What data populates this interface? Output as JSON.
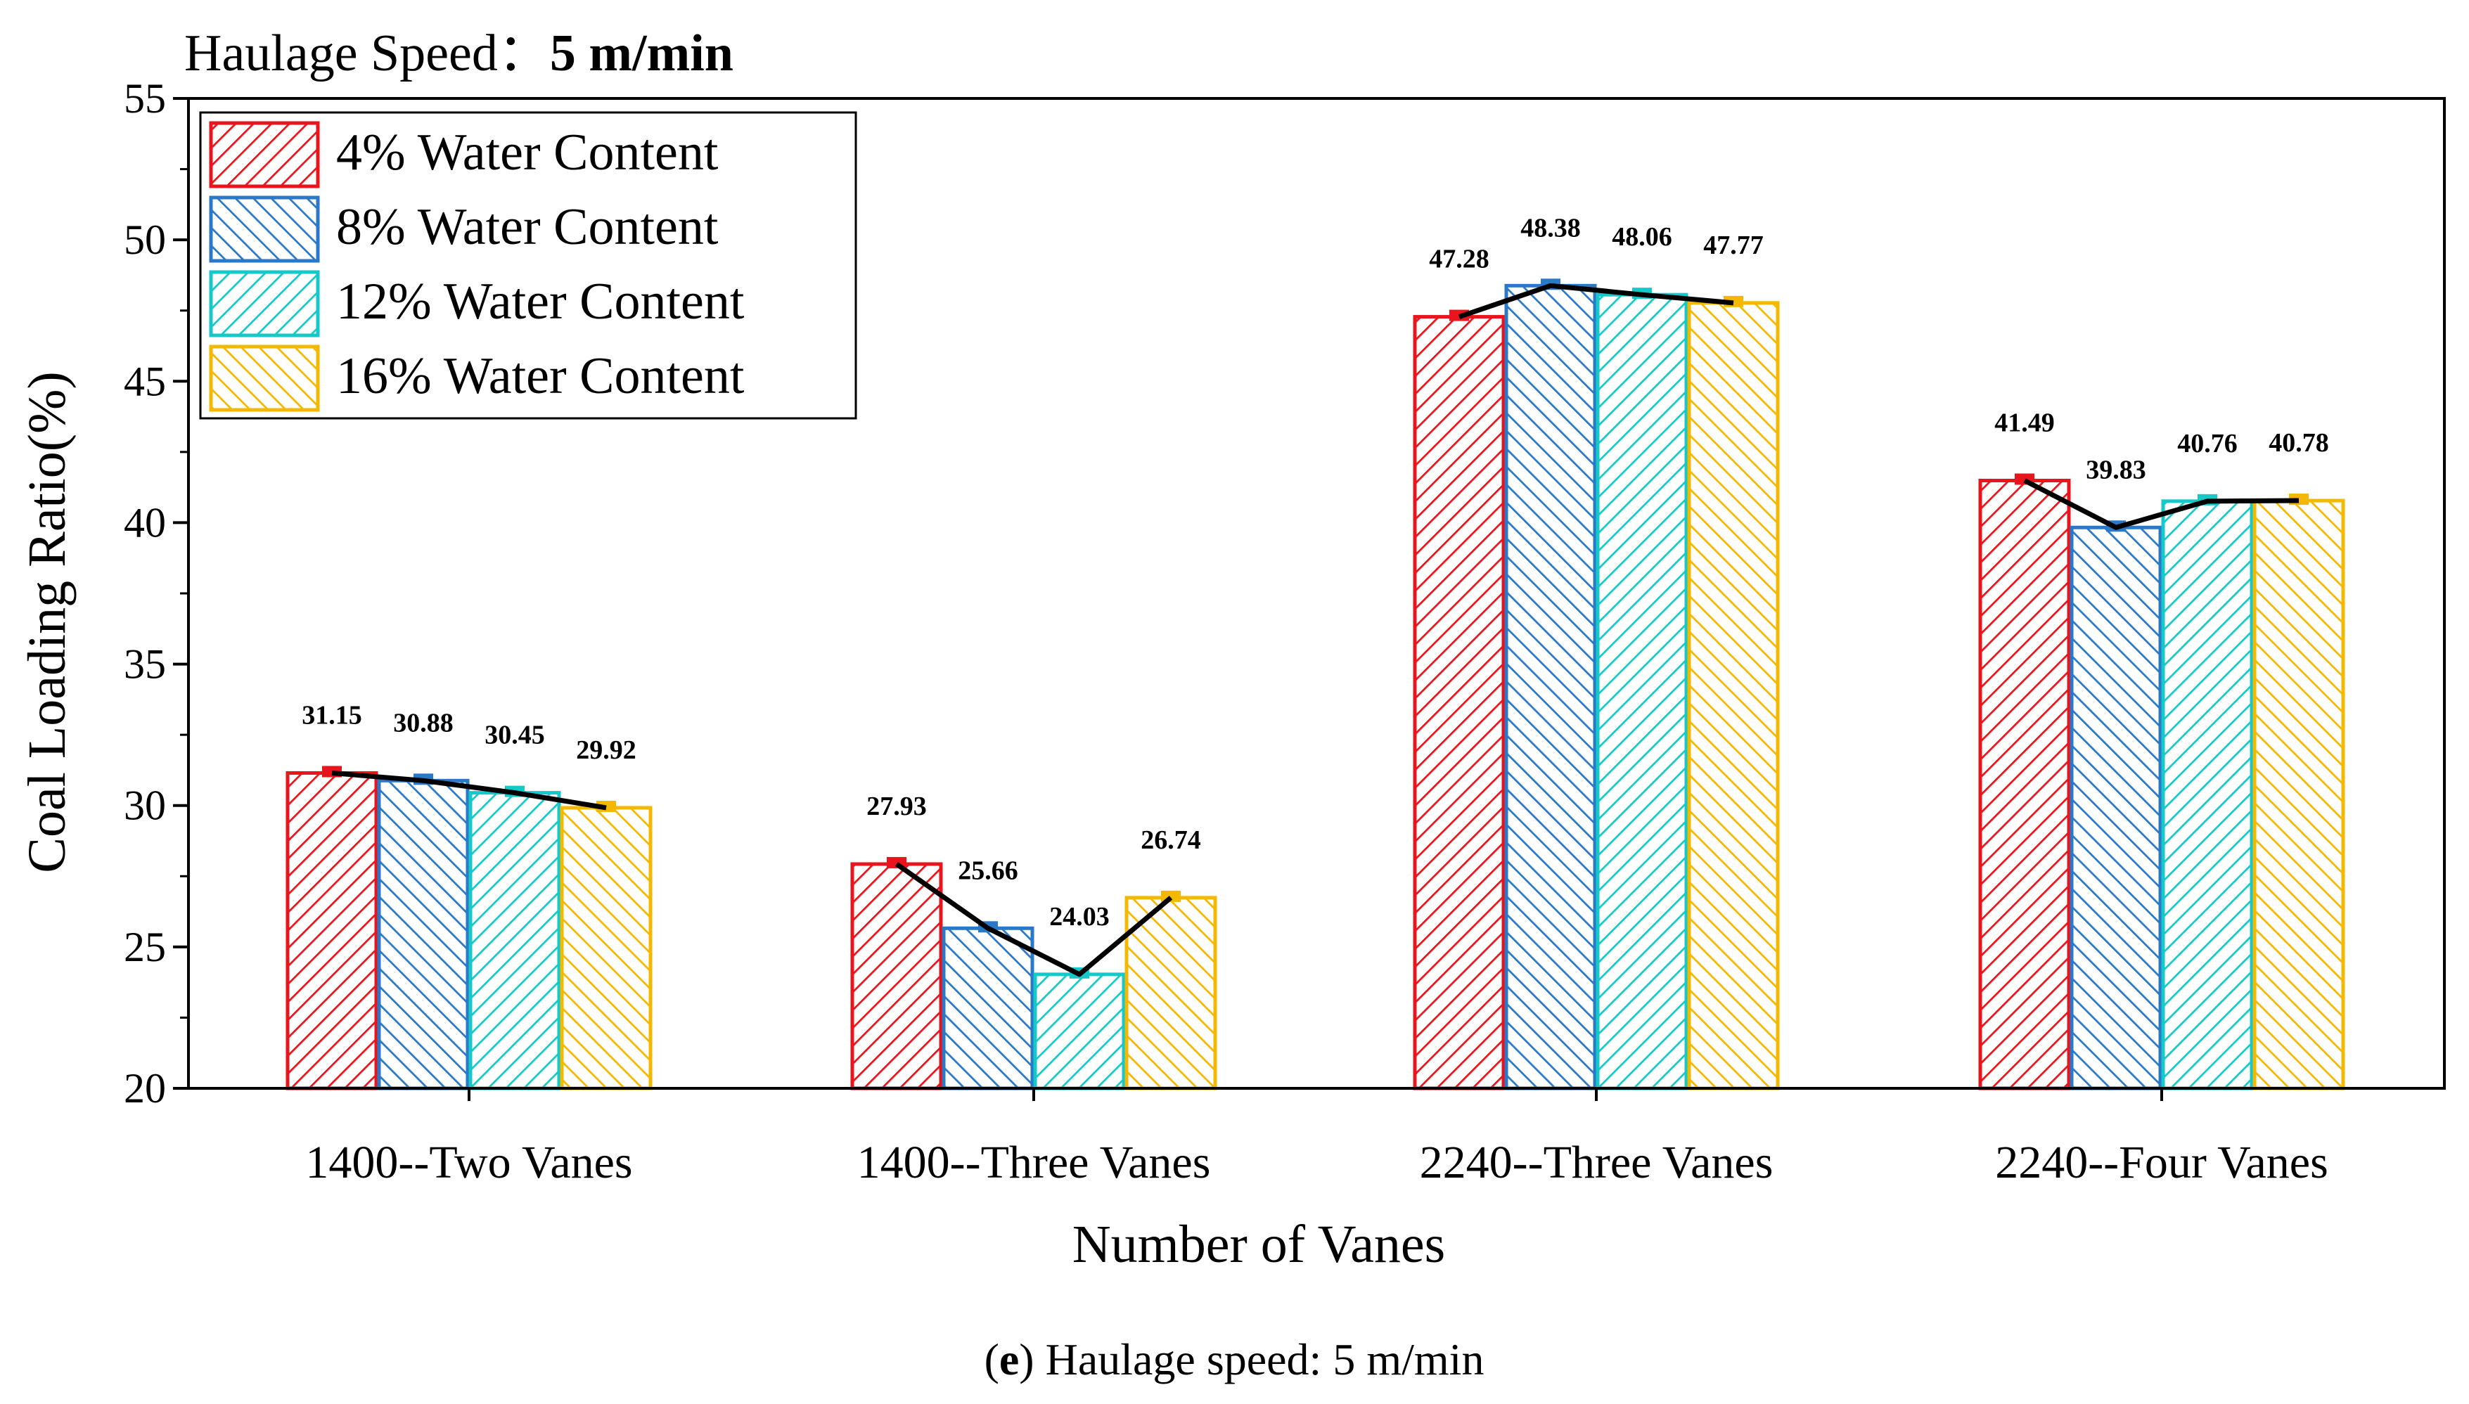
{
  "heading": {
    "label": "Haulage Speed：",
    "value": "5 m/min"
  },
  "caption": {
    "open": "(",
    "letter": "e",
    "rest": ") Haulage speed: 5 m/min"
  },
  "chart_data": {
    "type": "bar",
    "title": "Haulage Speed：5 m/min",
    "xlabel": "Number of Vanes",
    "ylabel": "Coal Loading Ratio(%)",
    "ylim": [
      20,
      55
    ],
    "yticks": [
      20,
      25,
      30,
      35,
      40,
      45,
      50,
      55
    ],
    "ytick_labels": [
      "20",
      "25",
      "30",
      "35",
      "40",
      "45",
      "50",
      "55"
    ],
    "categories": [
      "1400--Two Vanes",
      "1400--Three Vanes",
      "2240--Three Vanes",
      "2240--Four Vanes"
    ],
    "series": [
      {
        "name": "4% Water Content",
        "color": "#e8161c",
        "hatch": "forward",
        "values": [
          31.15,
          27.93,
          47.28,
          41.49
        ],
        "labels": [
          "31.15",
          "27.93",
          "47.28",
          "41.49"
        ]
      },
      {
        "name": "8% Water Content",
        "color": "#2a78c8",
        "hatch": "back",
        "values": [
          30.88,
          25.66,
          48.38,
          39.83
        ],
        "labels": [
          "30.88",
          "25.66",
          "48.38",
          "39.83"
        ]
      },
      {
        "name": "12% Water Content",
        "color": "#16c9c9",
        "hatch": "forward",
        "values": [
          30.45,
          24.03,
          48.06,
          40.76
        ],
        "labels": [
          "30.45",
          "24.03",
          "48.06",
          "40.76"
        ]
      },
      {
        "name": "16% Water Content",
        "color": "#f5b800",
        "hatch": "back",
        "values": [
          29.92,
          26.74,
          47.77,
          40.78
        ],
        "labels": [
          "29.92",
          "26.74",
          "47.77",
          "40.78"
        ]
      }
    ],
    "trend_line": {
      "color": "#000000",
      "connects": "group-tops"
    },
    "legend_position": "top-left",
    "grid": false
  }
}
